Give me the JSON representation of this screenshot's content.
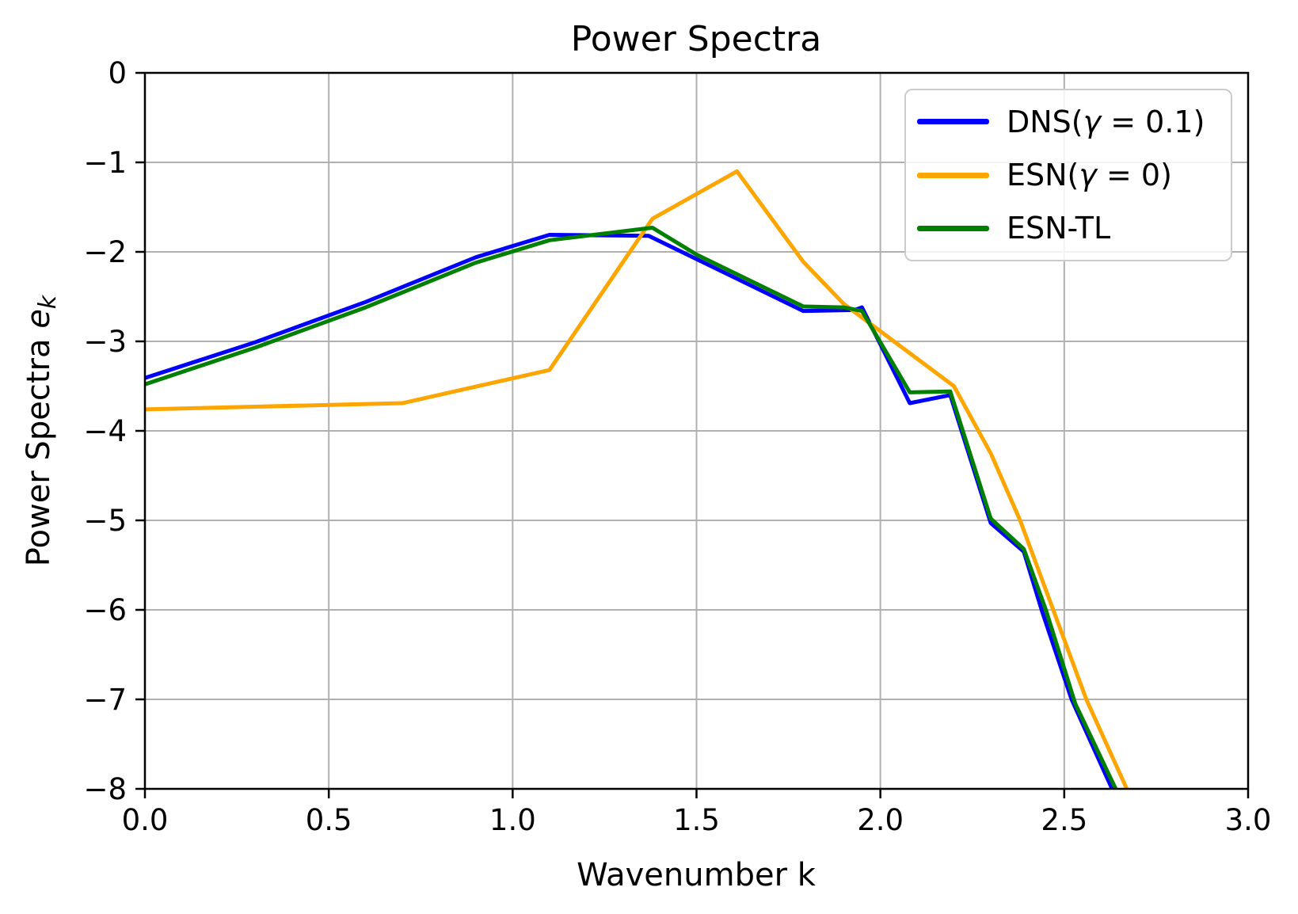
{
  "title": "Power Spectra",
  "xlabel": "Wavenumber k",
  "ylabel": {
    "main": "Power Spectra ",
    "var": "e",
    "sub": "k"
  },
  "legend": {
    "items": [
      {
        "pre": "DNS(",
        "gamma": "γ",
        "post": " = 0.1)",
        "color": "#0000ff"
      },
      {
        "pre": "ESN(",
        "gamma": "γ",
        "post": " = 0)",
        "color": "#ffa500"
      },
      {
        "pre": "ESN-TL",
        "gamma": "",
        "post": "",
        "color": "#008000"
      }
    ]
  },
  "chart_data": {
    "type": "line",
    "title": "Power Spectra",
    "xlabel": "Wavenumber k",
    "ylabel": "Power Spectra e_k",
    "xlim": [
      0.0,
      3.0
    ],
    "ylim": [
      -8,
      0
    ],
    "grid": true,
    "grid_color": "#b0b0b0",
    "legend_position": "upper right",
    "x_ticks": [
      0.0,
      0.5,
      1.0,
      1.5,
      2.0,
      2.5,
      3.0
    ],
    "x_tick_labels": [
      "0.0",
      "0.5",
      "1.0",
      "1.5",
      "2.0",
      "2.5",
      "3.0"
    ],
    "y_ticks": [
      0,
      -1,
      -2,
      -3,
      -4,
      -5,
      -6,
      -7,
      -8
    ],
    "y_tick_labels": [
      "0",
      "−1",
      "−2",
      "−3",
      "−4",
      "−5",
      "−6",
      "−7",
      "−8"
    ],
    "series": [
      {
        "name": "DNS(γ = 0.1)",
        "color": "#0000ff",
        "points": [
          [
            0.0,
            -3.41
          ],
          [
            0.3,
            -3.01
          ],
          [
            0.6,
            -2.56
          ],
          [
            0.9,
            -2.06
          ],
          [
            1.1,
            -1.81
          ],
          [
            1.37,
            -1.82
          ],
          [
            1.79,
            -2.66
          ],
          [
            1.93,
            -2.65
          ],
          [
            1.95,
            -2.62
          ],
          [
            2.08,
            -3.69
          ],
          [
            2.19,
            -3.6
          ],
          [
            2.3,
            -5.03
          ],
          [
            2.39,
            -5.35
          ],
          [
            2.44,
            -6.02
          ],
          [
            2.52,
            -7.0
          ],
          [
            2.63,
            -8.0
          ]
        ]
      },
      {
        "name": "ESN(γ = 0)",
        "color": "#ffa500",
        "points": [
          [
            0.0,
            -3.76
          ],
          [
            0.7,
            -3.69
          ],
          [
            1.1,
            -3.32
          ],
          [
            1.38,
            -1.63
          ],
          [
            1.61,
            -1.1
          ],
          [
            1.79,
            -2.11
          ],
          [
            1.9,
            -2.58
          ],
          [
            2.2,
            -3.5
          ],
          [
            2.3,
            -4.25
          ],
          [
            2.38,
            -5.0
          ],
          [
            2.47,
            -6.0
          ],
          [
            2.56,
            -7.0
          ],
          [
            2.67,
            -8.0
          ]
        ]
      },
      {
        "name": "ESN-TL",
        "color": "#008000",
        "points": [
          [
            0.0,
            -3.48
          ],
          [
            0.3,
            -3.07
          ],
          [
            0.6,
            -2.62
          ],
          [
            0.9,
            -2.12
          ],
          [
            1.1,
            -1.87
          ],
          [
            1.24,
            -1.8
          ],
          [
            1.38,
            -1.73
          ],
          [
            1.5,
            -2.03
          ],
          [
            1.79,
            -2.61
          ],
          [
            1.9,
            -2.62
          ],
          [
            1.95,
            -2.66
          ],
          [
            2.08,
            -3.57
          ],
          [
            2.19,
            -3.56
          ],
          [
            2.3,
            -4.98
          ],
          [
            2.39,
            -5.32
          ],
          [
            2.45,
            -6.0
          ],
          [
            2.53,
            -7.05
          ],
          [
            2.64,
            -8.0
          ]
        ]
      }
    ]
  }
}
